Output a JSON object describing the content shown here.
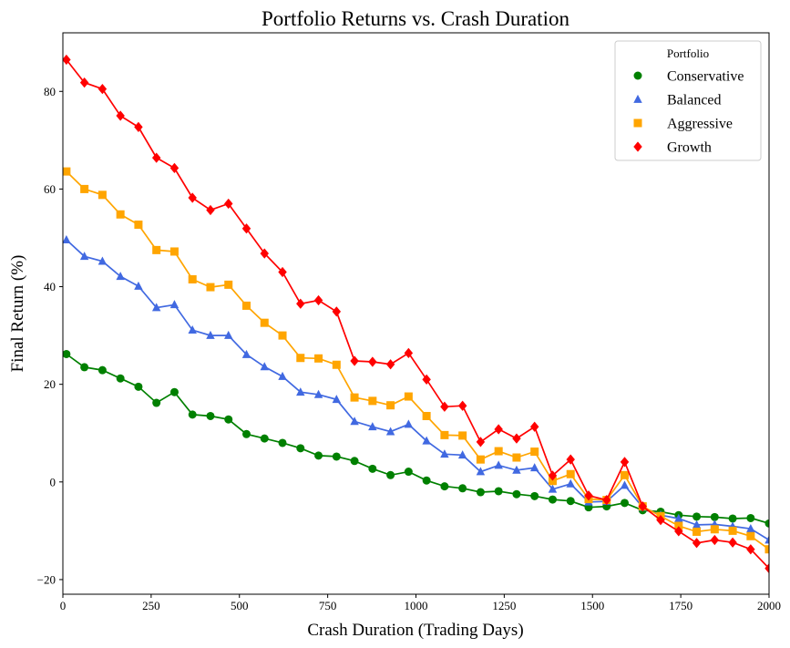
{
  "chart_data": {
    "type": "line",
    "title": "Portfolio Returns vs. Crash Duration",
    "xlabel": "Crash Duration (Trading Days)",
    "ylabel": "Final Return (%)",
    "xlim": [
      0,
      2000
    ],
    "ylim": [
      -23,
      92
    ],
    "xticks": [
      0,
      250,
      500,
      750,
      1000,
      1250,
      1500,
      1750,
      2000
    ],
    "yticks": [
      -20,
      0,
      20,
      40,
      60,
      80
    ],
    "xtick_labels": [
      "0",
      "250",
      "500",
      "750",
      "1000",
      "1250",
      "1500",
      "1750",
      "2000"
    ],
    "ytick_labels": [
      "−20",
      "0",
      "20",
      "40",
      "60",
      "80"
    ],
    "grid": false,
    "legend": {
      "title": "Portfolio",
      "placement": "top-right"
    },
    "x": [
      10,
      61,
      112,
      163,
      214,
      265,
      316,
      367,
      418,
      469,
      520,
      571,
      622,
      673,
      724,
      775,
      826,
      877,
      928,
      979,
      1030,
      1081,
      1132,
      1183,
      1234,
      1285,
      1336,
      1387,
      1438,
      1489,
      1540,
      1591,
      1642,
      1693,
      1744,
      1795,
      1846,
      1897,
      1948,
      2000
    ],
    "series": [
      {
        "name": "Conservative",
        "marker": "circle",
        "color": "#008000",
        "values": [
          26.2,
          23.5,
          22.9,
          21.2,
          19.5,
          16.2,
          18.4,
          13.8,
          13.5,
          12.8,
          9.8,
          8.9,
          8.0,
          6.9,
          5.4,
          5.2,
          4.3,
          2.7,
          1.4,
          2.1,
          0.3,
          -0.9,
          -1.3,
          -2.1,
          -1.9,
          -2.5,
          -2.9,
          -3.6,
          -3.9,
          -5.2,
          -5.0,
          -4.3,
          -5.8,
          -6.1,
          -6.8,
          -7.1,
          -7.2,
          -7.5,
          -7.4,
          -8.5
        ]
      },
      {
        "name": "Balanced",
        "marker": "triangle",
        "color": "#4169E1",
        "values": [
          49.6,
          46.2,
          45.2,
          42.1,
          40.1,
          35.7,
          36.3,
          31.1,
          30.0,
          30.0,
          26.1,
          23.6,
          21.6,
          18.4,
          17.9,
          16.9,
          12.4,
          11.3,
          10.3,
          11.8,
          8.4,
          5.7,
          5.5,
          2.1,
          3.4,
          2.4,
          2.9,
          -1.5,
          -0.4,
          -4.1,
          -4.0,
          -0.7,
          -5.2,
          -6.8,
          -7.5,
          -8.8,
          -8.7,
          -9.1,
          -9.6,
          -11.9
        ]
      },
      {
        "name": "Aggressive",
        "marker": "square",
        "color": "#FFA500",
        "values": [
          63.6,
          60.0,
          58.8,
          54.8,
          52.7,
          47.5,
          47.2,
          41.5,
          39.9,
          40.4,
          36.1,
          32.6,
          30.0,
          25.4,
          25.3,
          24.0,
          17.3,
          16.6,
          15.7,
          17.5,
          13.5,
          9.6,
          9.5,
          4.6,
          6.3,
          5.0,
          6.2,
          0.2,
          1.6,
          -3.5,
          -3.7,
          1.4,
          -5.0,
          -7.0,
          -9.0,
          -10.2,
          -9.7,
          -10.0,
          -11.1,
          -13.8
        ]
      },
      {
        "name": "Growth",
        "marker": "diamond",
        "color": "#FF0000",
        "values": [
          86.5,
          81.8,
          80.5,
          75.0,
          72.7,
          66.4,
          64.3,
          58.2,
          55.7,
          57.0,
          51.9,
          46.8,
          43.0,
          36.5,
          37.2,
          34.9,
          24.8,
          24.6,
          24.1,
          26.4,
          21.0,
          15.4,
          15.6,
          8.2,
          10.8,
          8.9,
          11.3,
          1.3,
          4.6,
          -2.8,
          -3.7,
          4.1,
          -5.0,
          -7.8,
          -10.1,
          -12.5,
          -11.9,
          -12.4,
          -13.8,
          -17.7
        ]
      }
    ]
  }
}
